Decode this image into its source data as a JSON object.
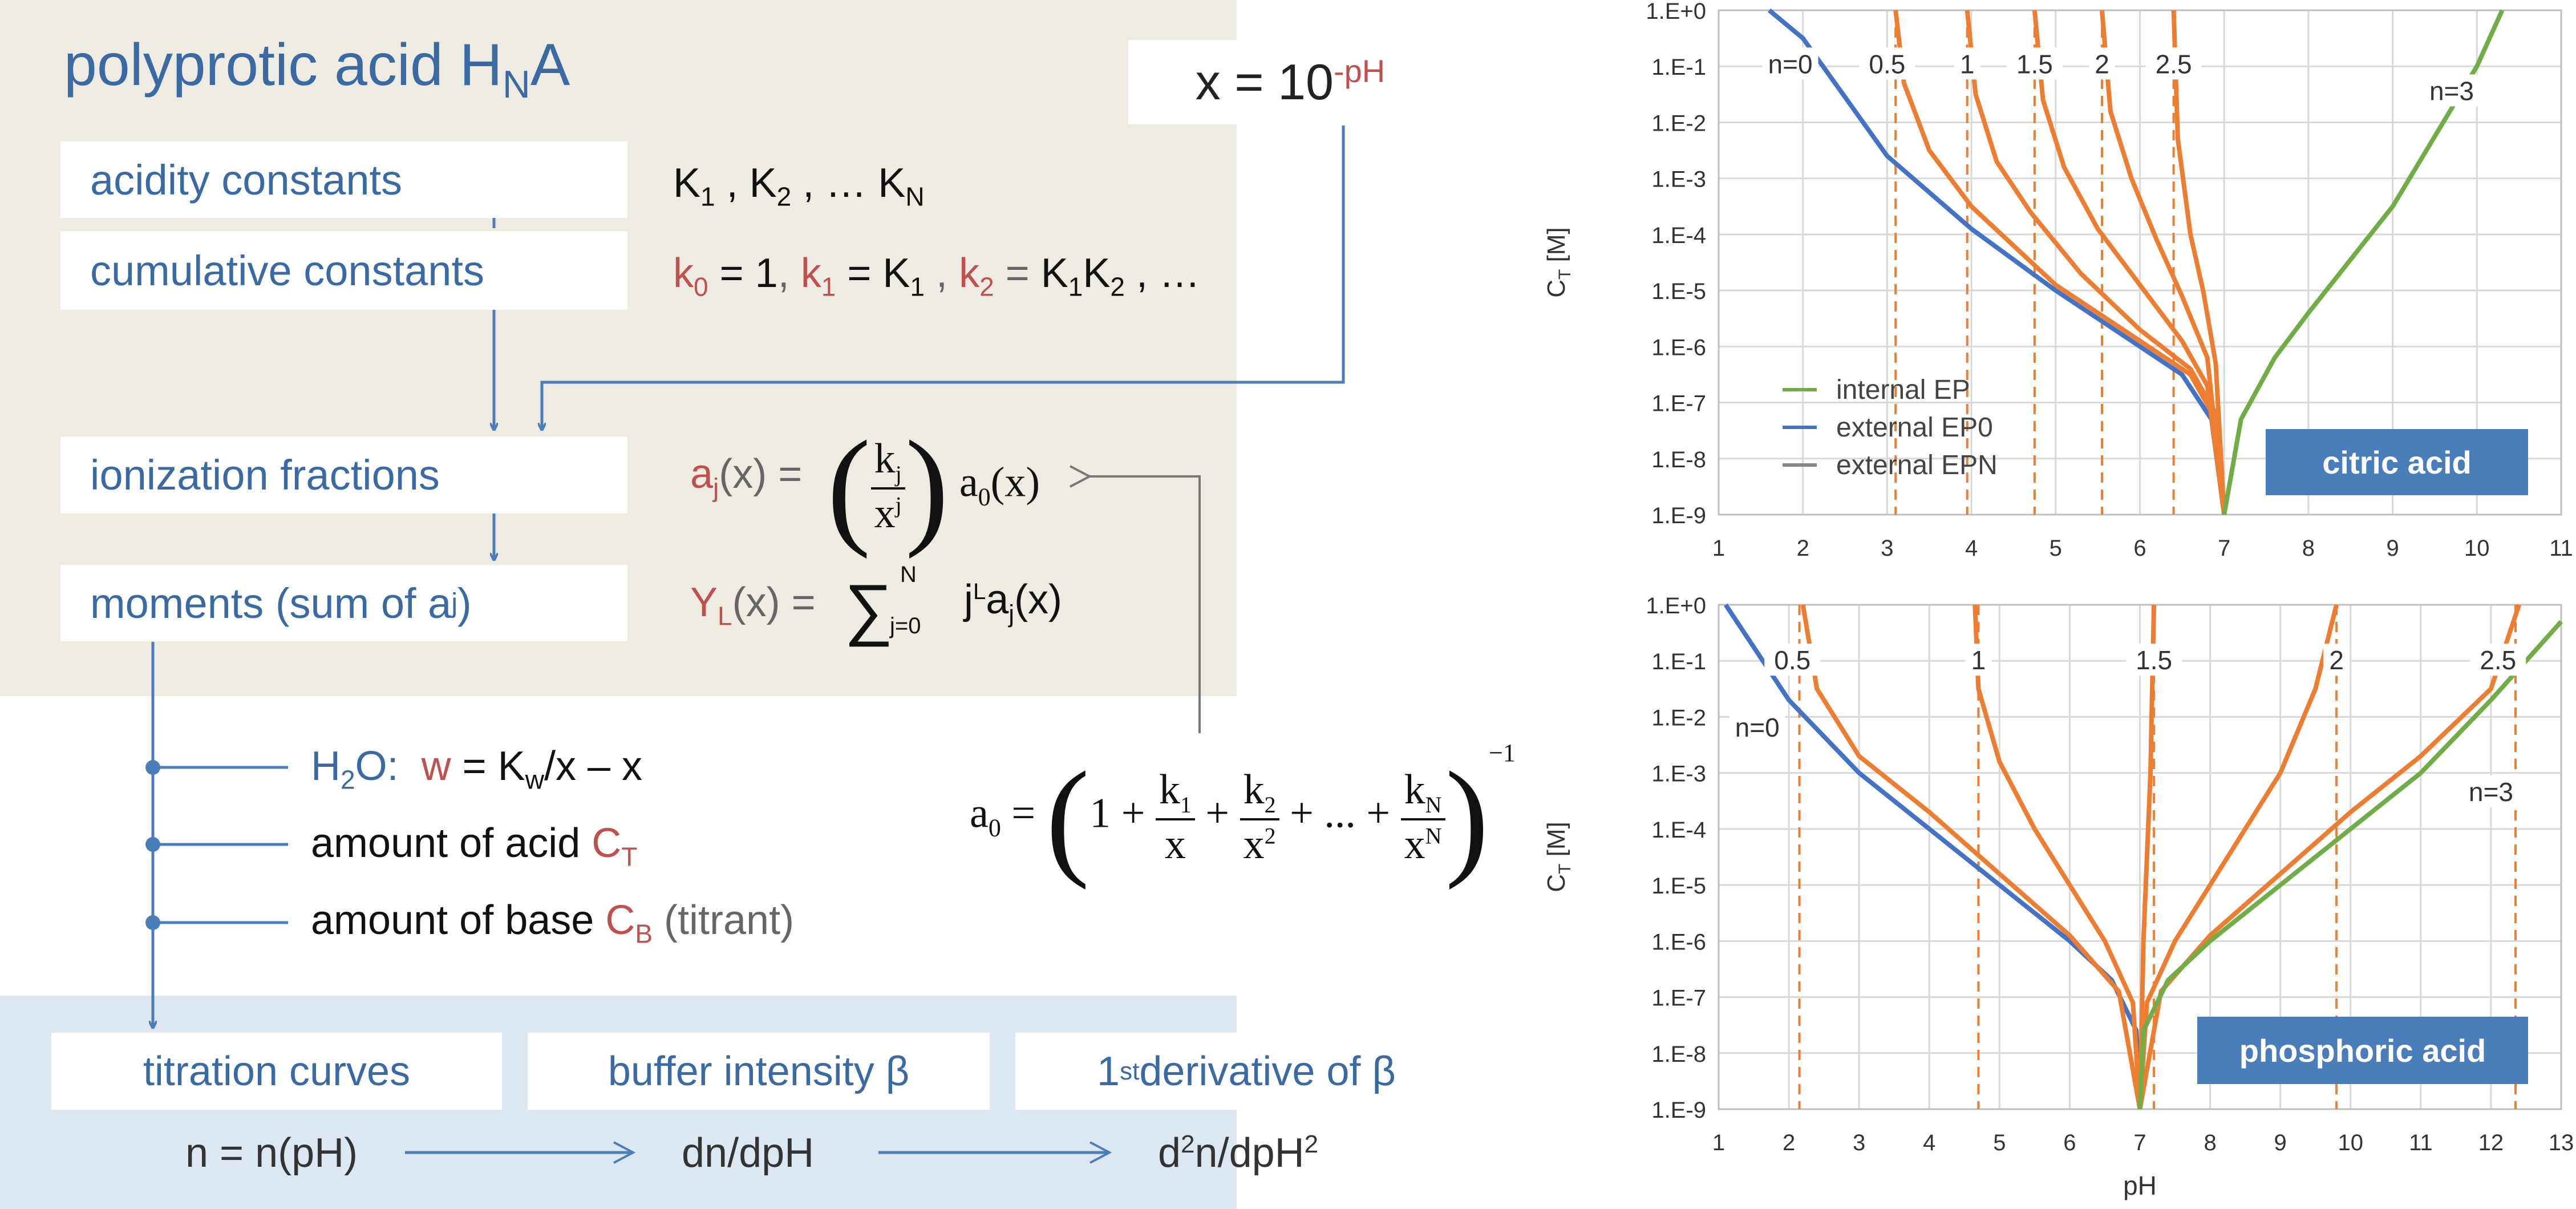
{
  "title": {
    "text": "polyprotic acid H",
    "sub": "N",
    "tail": "A"
  },
  "xdef": {
    "base": "x = 10",
    "exp": "-pH"
  },
  "boxes": {
    "acidity": "acidity constants",
    "cumulative": "cumulative constants",
    "ionization": "ionization fractions",
    "moments": "moments (sum of a",
    "moments_sub": "j",
    "moments_tail": ")",
    "titration": "titration curves",
    "buffer": "buffer intensity β",
    "deriv_pre": "1",
    "deriv_sup": "st",
    "deriv_post": " derivative of β"
  },
  "formulas": {
    "K": "K",
    "k": "k",
    "a": "a",
    "x": "x",
    "j": "j",
    "N": "N",
    "Y": "Y",
    "L": "L",
    "dots": "…",
    "aj_lhs": "(x) = ",
    "yl_lhs": "(x) = ",
    "yl_rhs": "(x)",
    "a0_rhs": "(x)",
    "sum_top": "N",
    "sum_bot": "j=0",
    "a0_lhs": "a",
    "a0_sub": "0",
    "one": "1 +",
    "ellipsis_frac": "+ ... +",
    "exponent": "−1"
  },
  "inputs": {
    "h2o": "H",
    "h2o_sub": "2",
    "h2o_tail": "O:",
    "w": "w",
    "w_rhs1": " = K",
    "w_sub": "w",
    "w_rhs2": "/x – x",
    "acid": "amount of acid ",
    "acid_sym": "C",
    "acid_sub": "T",
    "base": "amount of base ",
    "base_sym": "C",
    "base_sub": "B",
    "base_tail": " (titrant)"
  },
  "bottom": {
    "n": "n = n(pH)",
    "dn": "dn/dpH",
    "d2a": "d",
    "d2b": "2",
    "d2c": "n/dpH",
    "d2d": "2"
  },
  "chart_data": [
    {
      "type": "line",
      "name": "citric acid",
      "xlabel": "",
      "ylabel": "C_T [M]",
      "xlim": [
        1,
        11
      ],
      "xticks": [
        "1",
        "2",
        "3",
        "4",
        "5",
        "6",
        "7",
        "8",
        "9",
        "10",
        "11"
      ],
      "yticks": [
        "1.E+0",
        "1.E-1",
        "1.E-2",
        "1.E-3",
        "1.E-4",
        "1.E-5",
        "1.E-6",
        "1.E-7",
        "1.E-8",
        "1.E-9"
      ],
      "legend": [
        "internal EP",
        "external EP0",
        "external EPN"
      ],
      "curve_labels": [
        "n=0",
        "0.5",
        "1",
        "1.5",
        "2",
        "2.5",
        "n=3"
      ],
      "asymptotes": [
        3.1,
        3.95,
        4.75,
        5.55,
        6.4
      ],
      "series": [
        {
          "name": "n=0",
          "color": "#4472c4",
          "x": [
            1.6,
            2,
            3,
            4,
            5,
            6,
            6.5,
            6.85,
            7
          ],
          "y": [
            0,
            -0.5,
            -2.6,
            -3.9,
            -5,
            -6,
            -6.5,
            -7.3,
            -9
          ]
        },
        {
          "name": "0.5",
          "color": "#ed7d31",
          "x": [
            3.1,
            3.2,
            3.5,
            4,
            5,
            6,
            6.6,
            6.9,
            7
          ],
          "y": [
            0,
            -1.3,
            -2.5,
            -3.5,
            -4.9,
            -5.9,
            -6.5,
            -7.3,
            -9
          ]
        },
        {
          "name": "1",
          "color": "#ed7d31",
          "x": [
            3.95,
            4.05,
            4.3,
            4.7,
            5.3,
            6,
            6.6,
            6.9,
            7
          ],
          "y": [
            0,
            -1.5,
            -2.7,
            -3.6,
            -4.7,
            -5.7,
            -6.4,
            -7.2,
            -9
          ]
        },
        {
          "name": "1.5",
          "color": "#ed7d31",
          "x": [
            4.75,
            4.85,
            5.1,
            5.5,
            6,
            6.5,
            6.8,
            7
          ],
          "y": [
            0,
            -1.6,
            -2.8,
            -3.9,
            -4.9,
            -5.9,
            -6.7,
            -9
          ]
        },
        {
          "name": "2",
          "color": "#ed7d31",
          "x": [
            5.55,
            5.65,
            5.9,
            6.2,
            6.5,
            6.8,
            7
          ],
          "y": [
            0,
            -1.8,
            -3,
            -4.1,
            -5.1,
            -6.2,
            -9
          ]
        },
        {
          "name": "2.5",
          "color": "#ed7d31",
          "x": [
            6.4,
            6.45,
            6.6,
            6.75,
            6.9,
            7
          ],
          "y": [
            0,
            -2.3,
            -4,
            -5,
            -6.3,
            -9
          ]
        },
        {
          "name": "n=3",
          "color": "#70ad47",
          "x": [
            7,
            7.2,
            7.6,
            8,
            9,
            10,
            10.3
          ],
          "y": [
            -9,
            -7.3,
            -6.2,
            -5.4,
            -3.5,
            -1,
            0
          ]
        }
      ],
      "tag": "citric acid"
    },
    {
      "type": "line",
      "name": "phosphoric acid",
      "xlabel": "pH",
      "ylabel": "C_T [M]",
      "xlim": [
        1,
        13
      ],
      "xticks": [
        "1",
        "2",
        "3",
        "4",
        "5",
        "6",
        "7",
        "8",
        "9",
        "10",
        "11",
        "12",
        "13"
      ],
      "yticks": [
        "1.E+0",
        "1.E-1",
        "1.E-2",
        "1.E-3",
        "1.E-4",
        "1.E-5",
        "1.E-6",
        "1.E-7",
        "1.E-8",
        "1.E-9"
      ],
      "curve_labels": [
        "0.5",
        "1",
        "1.5",
        "2",
        "2.5",
        "n=0",
        "n=3"
      ],
      "asymptotes": [
        2.15,
        4.7,
        7.2,
        9.8,
        12.35
      ],
      "series": [
        {
          "name": "n=0",
          "color": "#4472c4",
          "x": [
            1.1,
            2,
            3,
            4,
            5,
            6,
            6.6,
            6.95,
            7
          ],
          "y": [
            0,
            -1.7,
            -3,
            -4,
            -5,
            -6,
            -6.7,
            -7.6,
            -9
          ]
        },
        {
          "name": "0.5",
          "color": "#ed7d31",
          "x": [
            2.2,
            2.4,
            3,
            4,
            5,
            6,
            6.7,
            7
          ],
          "y": [
            0,
            -1.5,
            -2.7,
            -3.7,
            -4.8,
            -5.9,
            -6.9,
            -9
          ]
        },
        {
          "name": "1",
          "color": "#ed7d31",
          "x": [
            4.65,
            4.7,
            5,
            5.5,
            6,
            6.5,
            6.9,
            7
          ],
          "y": [
            0,
            -1.5,
            -2.8,
            -4,
            -5,
            -6,
            -7.1,
            -9
          ]
        },
        {
          "name": "1.5",
          "color": "#ed7d31",
          "x": [
            7.2,
            7.15,
            7.05,
            7
          ],
          "y": [
            0,
            -3,
            -6,
            -9
          ]
        },
        {
          "name": "2",
          "color": "#ed7d31",
          "x": [
            7,
            7.1,
            7.5,
            8,
            8.5,
            9,
            9.5,
            9.8
          ],
          "y": [
            -9,
            -7.1,
            -6,
            -5,
            -4,
            -3,
            -1.5,
            0
          ]
        },
        {
          "name": "2.5",
          "color": "#ed7d31",
          "x": [
            7,
            7.3,
            8,
            9,
            10,
            11,
            12,
            12.4
          ],
          "y": [
            -9,
            -6.9,
            -5.9,
            -4.8,
            -3.7,
            -2.7,
            -1.5,
            0
          ]
        },
        {
          "name": "n=3",
          "color": "#70ad47",
          "x": [
            7,
            7.05,
            7.4,
            8,
            9,
            10,
            11,
            12,
            13
          ],
          "y": [
            -9,
            -7.6,
            -6.7,
            -6,
            -5,
            -4,
            -3,
            -1.7,
            -0.3
          ]
        }
      ],
      "tag": "phosphoric acid"
    }
  ]
}
